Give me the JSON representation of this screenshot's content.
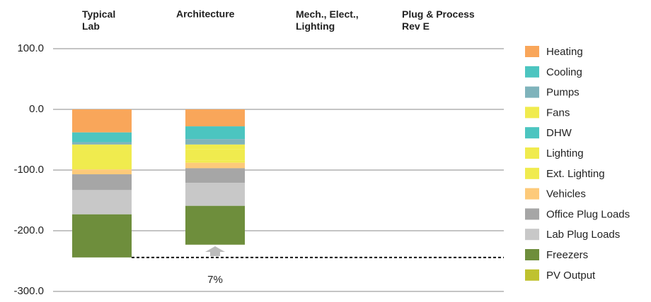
{
  "chart_data": {
    "type": "stacked_bar",
    "categories": [
      "Typical\nLab",
      "Architecture",
      "Mech., Elect.,\nLighting",
      "Plug & Process\nRev E"
    ],
    "series": [
      {
        "name": "Heating",
        "color": "#f9a65a",
        "values": [
          -38,
          -28,
          null,
          null
        ]
      },
      {
        "name": "Cooling",
        "color": "#4cc5c0",
        "values": [
          -16,
          -21,
          null,
          null
        ]
      },
      {
        "name": "Pumps",
        "color": "#7fb3bb",
        "values": [
          -4,
          -9,
          null,
          null
        ]
      },
      {
        "name": "Fans",
        "color": "#f0eb4e",
        "values": [
          -10,
          -8,
          null,
          null
        ]
      },
      {
        "name": "DHW",
        "color": "#4cc5c0",
        "values": [
          0,
          0,
          null,
          null
        ]
      },
      {
        "name": "Lighting",
        "color": "#f0eb4e",
        "values": [
          -25,
          -18,
          null,
          null
        ]
      },
      {
        "name": "Ext. Lighting",
        "color": "#f0eb4e",
        "values": [
          -6,
          -4,
          null,
          null
        ]
      },
      {
        "name": "Vehicles",
        "color": "#fdca7a",
        "values": [
          -8,
          -9,
          null,
          null
        ]
      },
      {
        "name": "Office Plug Loads",
        "color": "#a6a6a6",
        "values": [
          -26,
          -24,
          null,
          null
        ]
      },
      {
        "name": "Lab Plug Loads",
        "color": "#c8c8c8",
        "values": [
          -40,
          -38,
          null,
          null
        ]
      },
      {
        "name": "Freezers",
        "color": "#6e8e3c",
        "values": [
          -71,
          -64,
          null,
          null
        ]
      },
      {
        "name": "PV Output",
        "color": "#bfc22f",
        "values": [
          0,
          0,
          null,
          null
        ]
      }
    ],
    "ylim": [
      -300,
      100
    ],
    "yticks": [
      {
        "value": 100,
        "label": "100.0"
      },
      {
        "value": 0,
        "label": "0.0"
      },
      {
        "value": -100,
        "label": "-100.0"
      },
      {
        "value": -200,
        "label": "-200.0"
      },
      {
        "value": -300,
        "label": "-300.0"
      }
    ],
    "grid": true,
    "reference_line": -244,
    "annotation": "7%"
  }
}
